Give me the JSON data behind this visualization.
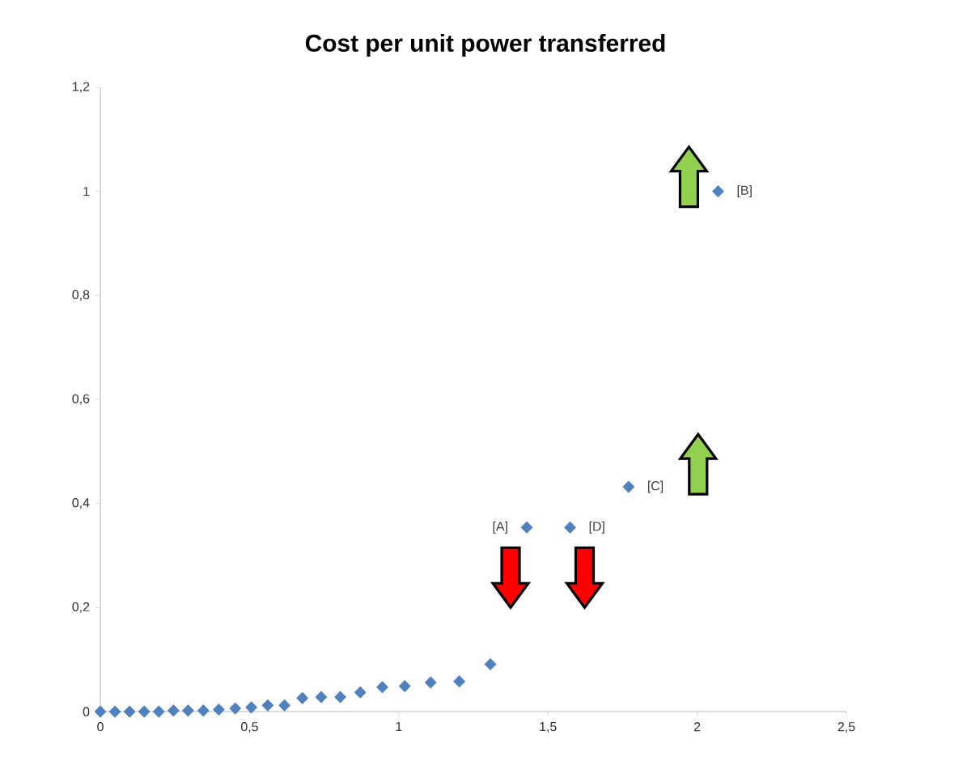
{
  "chart_data": {
    "type": "scatter",
    "title": "Cost per unit power transferred",
    "x": [
      0,
      0.049,
      0.098,
      0.147,
      0.196,
      0.245,
      0.294,
      0.345,
      0.397,
      0.452,
      0.506,
      0.561,
      0.617,
      0.677,
      0.74,
      0.804,
      0.871,
      0.945,
      1.02,
      1.107,
      1.203,
      1.307,
      1.429,
      1.574,
      1.77,
      2.07
    ],
    "values": [
      0,
      0,
      0,
      0,
      0,
      0.002,
      0.002,
      0.002,
      0.004,
      0.006,
      0.008,
      0.012,
      0.012,
      0.026,
      0.028,
      0.028,
      0.037,
      0.047,
      0.049,
      0.056,
      0.058,
      0.091,
      0.354,
      0.354,
      0.432,
      1.0
    ],
    "color": "#4f81bd",
    "marker": "diamond",
    "grid": false,
    "xlim": [
      0,
      2.5
    ],
    "xticks": [
      0,
      {
        "value": 0.5,
        "label": "0,5"
      },
      1,
      {
        "value": 1.5,
        "label": "1,5"
      },
      2,
      {
        "value": 2.5,
        "label": "2,5"
      }
    ],
    "ylim": [
      0,
      1.2
    ],
    "yticks": [
      0,
      {
        "value": 0.2,
        "label": "0,2"
      },
      {
        "value": 0.4,
        "label": "0,4"
      },
      {
        "value": 0.6,
        "label": "0,6"
      },
      {
        "value": 0.8,
        "label": "0,8"
      },
      1,
      {
        "value": 1.2,
        "label": "1,2"
      }
    ],
    "annotations": [
      {
        "text": "[A]",
        "x": 1.429,
        "y": 0.354
      },
      {
        "text": "[D]",
        "x": 1.574,
        "y": 0.354
      },
      {
        "text": "[C]",
        "x": 1.77,
        "y": 0.432
      },
      {
        "text": "[B]",
        "x": 2.07,
        "y": 1.0
      }
    ]
  }
}
